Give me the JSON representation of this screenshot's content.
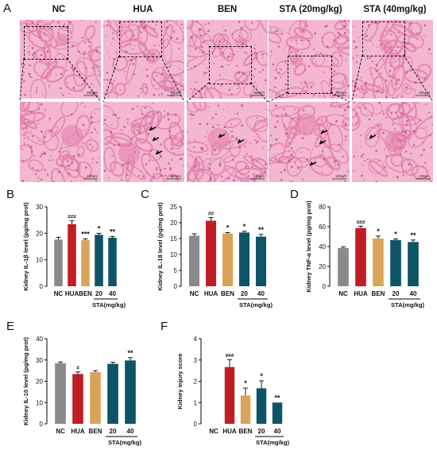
{
  "figure": {
    "panel_letters": [
      "A",
      "B",
      "C",
      "D",
      "E",
      "F"
    ],
    "histology": {
      "groups": [
        "NC",
        "HUA",
        "BEN",
        "STA (20mg/kg)",
        "STA (40mg/kg)"
      ],
      "scale_top": "200μm",
      "scale_bottom": "100μm",
      "arrows": [
        0,
        3,
        2,
        3,
        1
      ]
    },
    "colors": {
      "NC": "#8a8a8a",
      "HUA": "#c01d24",
      "BEN": "#d9a45a",
      "STA": "#0d5566",
      "tissue_bg": "#f3b8d0",
      "tissue_mid": "#e27fac",
      "tissue_dark": "#b2457e"
    }
  },
  "chart_data": [
    {
      "type": "bar",
      "panel": "B",
      "ylabel": "Kidney IL-1β level (pg/mg prot)",
      "categories": [
        "NC",
        "HUA",
        "BEN",
        "20",
        "40"
      ],
      "group_label": "STA(mg/kg)",
      "values": [
        17.6,
        23.4,
        17.4,
        19.4,
        18.3
      ],
      "errors": [
        0.9,
        1.3,
        0.5,
        0.6,
        0.5
      ],
      "significance": [
        "",
        "###",
        "***",
        "*",
        "**"
      ],
      "ylim": [
        0,
        30
      ],
      "yticks": [
        0,
        10,
        20,
        30
      ]
    },
    {
      "type": "bar",
      "panel": "C",
      "ylabel": "Kidney IL-18 level (pg/mg prot)",
      "categories": [
        "NC",
        "HUA",
        "BEN",
        "20",
        "40"
      ],
      "group_label": "STA(mg/kg)",
      "values": [
        15.9,
        20.6,
        16.6,
        16.9,
        15.6
      ],
      "errors": [
        0.6,
        1.0,
        0.3,
        0.4,
        0.7
      ],
      "significance": [
        "",
        "##",
        "*",
        "*",
        "**"
      ],
      "ylim": [
        0,
        25
      ],
      "yticks": [
        0,
        5,
        10,
        15,
        20,
        25
      ]
    },
    {
      "type": "bar",
      "panel": "D",
      "ylabel": "Kidney TNF-α level (pg/mg prot)",
      "categories": [
        "NC",
        "HUA",
        "BEN",
        "20",
        "40"
      ],
      "group_label": "STA(mg/kg)",
      "values": [
        38.5,
        58.5,
        48.0,
        46.5,
        44.5
      ],
      "errors": [
        1.0,
        2.0,
        2.5,
        1.2,
        2.0
      ],
      "significance": [
        "",
        "###",
        "*",
        "*",
        "**"
      ],
      "ylim": [
        0,
        80
      ],
      "yticks": [
        0,
        20,
        40,
        60,
        80
      ]
    },
    {
      "type": "bar",
      "panel": "E",
      "ylabel": "Kidney IL-10 level (pg/mg prot)",
      "categories": [
        "NC",
        "HUA",
        "BEN",
        "20",
        "40"
      ],
      "group_label": "STA(mg/kg)",
      "values": [
        28.5,
        23.4,
        24.3,
        28.2,
        29.8
      ],
      "errors": [
        0.6,
        1.0,
        0.7,
        0.8,
        1.3
      ],
      "significance": [
        "",
        "#",
        "",
        "",
        "**"
      ],
      "ylim": [
        0,
        40
      ],
      "yticks": [
        0,
        10,
        20,
        30,
        40
      ]
    },
    {
      "type": "bar",
      "panel": "F",
      "ylabel": "Kidney injury score",
      "categories": [
        "NC",
        "HUA",
        "BEN",
        "20",
        "40"
      ],
      "group_label": "STA(mg/kg)",
      "values": [
        0,
        2.67,
        1.33,
        1.67,
        1.0
      ],
      "errors": [
        0,
        0.35,
        0.35,
        0.35,
        0
      ],
      "significance": [
        "",
        "###",
        "*",
        "*",
        "**"
      ],
      "ylim": [
        0,
        4
      ],
      "yticks": [
        0,
        1,
        2,
        3,
        4
      ]
    }
  ]
}
